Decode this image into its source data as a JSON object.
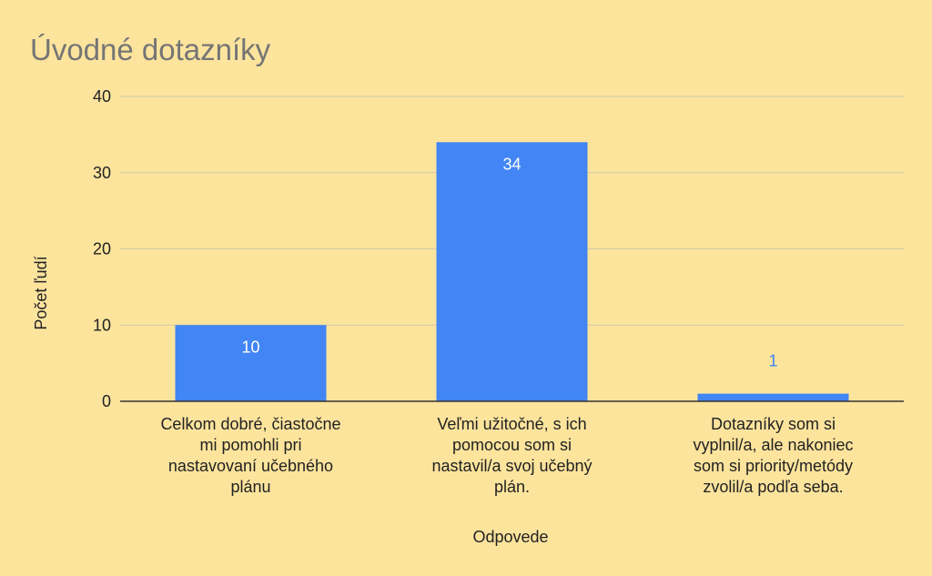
{
  "colors": {
    "background": "#FDE49D",
    "bar": "#4285F4",
    "grid": "#CFC7A7",
    "axis": "#333333",
    "title": "#757575",
    "text": "#222222",
    "data_label_inside": "#FFFFFF",
    "data_label_outside": "#4285F4"
  },
  "chart_data": {
    "type": "bar",
    "title": "Úvodné dotazníky",
    "xlabel": "Odpovede",
    "ylabel": "Počet ľudí",
    "categories": [
      "Celkom dobré, čiastočne mi pomohli pri nastavovaní učebného plánu",
      "Veľmi užitočné, s ich pomocou som si nastavil/a svoj učebný plán.",
      "Dotazníky som si vyplnil/a, ale nakoniec som si priority/metódy zvolil/a podľa seba."
    ],
    "values": [
      10,
      34,
      1
    ],
    "data_labels": [
      "10",
      "34",
      "1"
    ],
    "ylim": [
      0,
      40
    ],
    "yticks": [
      "0",
      "10",
      "20",
      "30",
      "40"
    ],
    "grid": true,
    "legend": "none"
  }
}
